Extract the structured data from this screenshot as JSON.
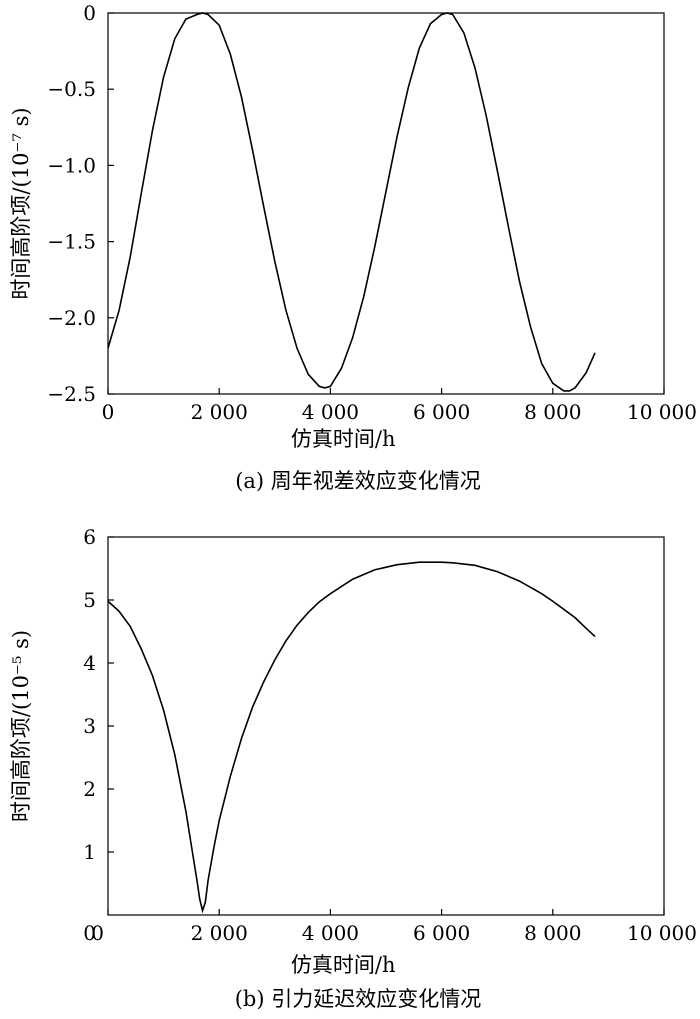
{
  "chart_data": [
    {
      "type": "line",
      "caption": "(a) 周年视差效应变化情况",
      "xlabel": "仿真时间/h",
      "ylabel": "时间高阶项/(10⁻⁷ s)",
      "xlim": [
        0,
        10000
      ],
      "ylim": [
        -2.5,
        0
      ],
      "xticks": [
        0,
        2000,
        4000,
        6000,
        8000,
        10000
      ],
      "xtick_labels": [
        "0",
        "2 000",
        "4 000",
        "6 000",
        "8 000",
        "10 000"
      ],
      "yticks": [
        0,
        -0.5,
        -1.0,
        -1.5,
        -2.0,
        -2.5
      ],
      "ytick_labels": [
        "0",
        "−0.5",
        "−1.0",
        "−1.5",
        "−2.0",
        "−2.5"
      ],
      "grid": false,
      "series": [
        {
          "x": [
            0,
            200,
            400,
            600,
            800,
            1000,
            1200,
            1400,
            1600,
            1700,
            1800,
            2000,
            2200,
            2400,
            2600,
            2800,
            3000,
            3200,
            3400,
            3600,
            3800,
            3900,
            4000,
            4200,
            4400,
            4600,
            4800,
            5000,
            5200,
            5400,
            5600,
            5800,
            6000,
            6100,
            6200,
            6400,
            6600,
            6800,
            7000,
            7200,
            7400,
            7600,
            7800,
            8000,
            8200,
            8300,
            8400,
            8600,
            8760
          ],
          "y": [
            -2.2,
            -1.95,
            -1.6,
            -1.18,
            -0.77,
            -0.42,
            -0.17,
            -0.04,
            -0.01,
            0,
            -0.01,
            -0.08,
            -0.27,
            -0.55,
            -0.9,
            -1.27,
            -1.63,
            -1.95,
            -2.2,
            -2.37,
            -2.45,
            -2.46,
            -2.45,
            -2.33,
            -2.13,
            -1.86,
            -1.53,
            -1.17,
            -0.81,
            -0.49,
            -0.23,
            -0.07,
            -0.01,
            0,
            -0.01,
            -0.13,
            -0.36,
            -0.67,
            -1.03,
            -1.4,
            -1.76,
            -2.06,
            -2.3,
            -2.43,
            -2.48,
            -2.48,
            -2.46,
            -2.36,
            -2.23
          ]
        }
      ]
    },
    {
      "type": "line",
      "caption": "(b) 引力延迟效应变化情况",
      "xlabel": "仿真时间/h",
      "ylabel": "时间高阶项/(10⁻⁵ s)",
      "xlim": [
        0,
        10000
      ],
      "ylim": [
        0,
        6
      ],
      "xticks": [
        0,
        2000,
        4000,
        6000,
        8000,
        10000
      ],
      "xtick_labels": [
        "0",
        "2 000",
        "4 000",
        "6 000",
        "8 000",
        "10 000"
      ],
      "yticks": [
        1,
        2,
        3,
        4,
        5,
        6
      ],
      "ytick_labels": [
        "1",
        "2",
        "3",
        "4",
        "5",
        "6"
      ],
      "grid": false,
      "series": [
        {
          "x": [
            0,
            200,
            400,
            600,
            800,
            1000,
            1200,
            1400,
            1500,
            1600,
            1650,
            1700,
            1750,
            1800,
            1900,
            2000,
            2200,
            2400,
            2600,
            2800,
            3000,
            3200,
            3400,
            3600,
            3800,
            4000,
            4400,
            4800,
            5200,
            5600,
            5800,
            6000,
            6200,
            6600,
            7000,
            7400,
            7800,
            8000,
            8200,
            8400,
            8600,
            8760
          ],
          "y": [
            4.98,
            4.82,
            4.58,
            4.22,
            3.8,
            3.25,
            2.55,
            1.65,
            1.1,
            0.55,
            0.25,
            0.07,
            0.2,
            0.55,
            1.05,
            1.5,
            2.2,
            2.8,
            3.3,
            3.7,
            4.05,
            4.35,
            4.6,
            4.8,
            4.97,
            5.1,
            5.33,
            5.48,
            5.56,
            5.6,
            5.6,
            5.6,
            5.59,
            5.55,
            5.45,
            5.3,
            5.1,
            4.98,
            4.85,
            4.72,
            4.55,
            4.42
          ]
        }
      ]
    }
  ]
}
